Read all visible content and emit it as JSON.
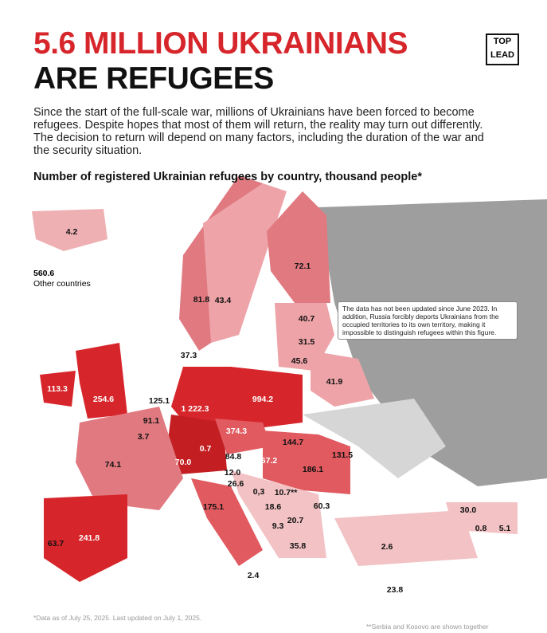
{
  "header": {
    "title_line1": "5.6 MILLION UKRAINIANS",
    "title_line2": "ARE REFUGEES",
    "logo_top": "TOP",
    "logo_bottom": "LEAD"
  },
  "intro": "Since the start of the full-scale war, millions of Ukrainians have been forced to become refugees. Despite hopes that most of them will return, the reality may turn out differently. The decision to return will depend on many factors, including the duration of the war and the security situation.",
  "map_title": "Number of registered Ukrainian refugees by country, thousand people*",
  "other": {
    "value": "560.6",
    "label": "Other countries"
  },
  "note": "The data has not been updated since June 2023. In addition, Russia forcibly deports Ukrainians from the occupied territories to its own territory, making it impossible to distinguish refugees within this figure.",
  "labels": [
    "4.2",
    "72.1",
    "81.8",
    "43.4",
    "40.7",
    "31.5",
    "45.6",
    "41.9",
    "37.3",
    "113.3",
    "254.6",
    "125.1",
    "1 222.3",
    "994.2",
    "91.1",
    "3.7",
    "374.3",
    "144.7",
    "131.5",
    "74.1",
    "70.0",
    "0.7",
    "84.8",
    "67.2",
    "186.1",
    "12.0",
    "26.6",
    "0,3",
    "10.7**",
    "18.6",
    "60.3",
    "175.1",
    "20.7",
    "9.3",
    "30.0",
    "0.8",
    "5.1",
    "63.7",
    "241.8",
    "35.8",
    "2.6",
    "2.4",
    "23.8"
  ],
  "footer": {
    "left": "*Data as of July 25, 2025. Last updated on July 1, 2025.",
    "right": "**Serbia and Kosovo are shown together"
  }
}
